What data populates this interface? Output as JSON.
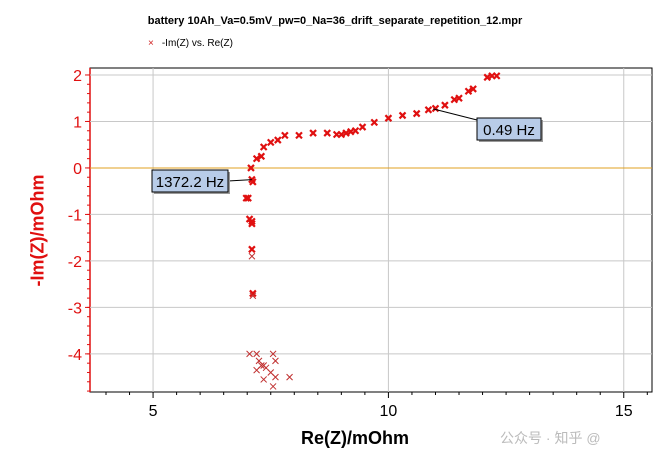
{
  "chart_data": {
    "type": "scatter",
    "title": "battery 10Ah_Va=0.5mV_pw=0_Na=36_drift_separate_repetition_12.mpr",
    "legend": {
      "entries": [
        "-Im(Z) vs. Re(Z)"
      ],
      "placement": "top-left"
    },
    "xlabel": "Re(Z)/mOhm",
    "ylabel": "-Im(Z)/mOhm",
    "xlim": [
      3.66,
      15.6
    ],
    "ylim": [
      -4.82,
      2.15
    ],
    "xticks": [
      5,
      10,
      15
    ],
    "yticks": [
      2,
      1,
      0,
      -1,
      -2,
      -3,
      -4
    ],
    "grid": true,
    "colors": {
      "marker": "#e01010",
      "marker_thin": "#c03030",
      "zero_line": "#e0a020",
      "ylabel": "#e01010",
      "callout_bg": "#b8cce8"
    },
    "series": [
      {
        "name": "-Im(Z) vs. Re(Z)",
        "x": [
          7.05,
          7.2,
          7.55,
          7.25,
          7.3,
          7.35,
          7.4,
          7.6,
          7.2,
          7.5,
          7.6,
          7.9,
          7.55,
          7.35,
          7.12,
          7.12,
          7.1,
          7.1,
          7.05,
          7.1,
          7.1,
          6.98,
          7.02,
          7.1,
          7.12,
          7.08,
          7.2,
          7.3,
          7.35,
          7.5,
          7.65,
          7.8,
          8.1,
          8.4,
          8.7,
          8.9,
          9.0,
          9.1,
          9.2,
          9.3,
          9.45,
          9.7,
          10.0,
          10.3,
          10.6,
          10.85,
          11.0,
          11.2,
          11.4,
          11.5,
          11.7,
          11.8,
          12.1,
          12.2,
          12.3
        ],
        "y": [
          -4.0,
          -4.0,
          -4.0,
          -4.15,
          -4.25,
          -4.25,
          -4.3,
          -4.15,
          -4.35,
          -4.4,
          -4.5,
          -4.5,
          -4.7,
          -4.55,
          -2.7,
          -2.75,
          -1.75,
          -1.9,
          -1.1,
          -1.15,
          -1.2,
          -0.65,
          -0.65,
          -0.25,
          -0.3,
          0.0,
          0.2,
          0.25,
          0.45,
          0.55,
          0.6,
          0.7,
          0.7,
          0.75,
          0.75,
          0.72,
          0.72,
          0.75,
          0.78,
          0.8,
          0.88,
          0.98,
          1.07,
          1.13,
          1.17,
          1.25,
          1.28,
          1.35,
          1.47,
          1.5,
          1.65,
          1.7,
          1.95,
          1.98,
          1.98
        ]
      }
    ],
    "annotations": [
      {
        "text": "1372.2 Hz",
        "x": 7.1,
        "y": -0.25
      },
      {
        "text": "0.49 Hz",
        "x": 10.95,
        "y": 1.27
      }
    ]
  },
  "watermark": "公众号 · 知乎 @"
}
